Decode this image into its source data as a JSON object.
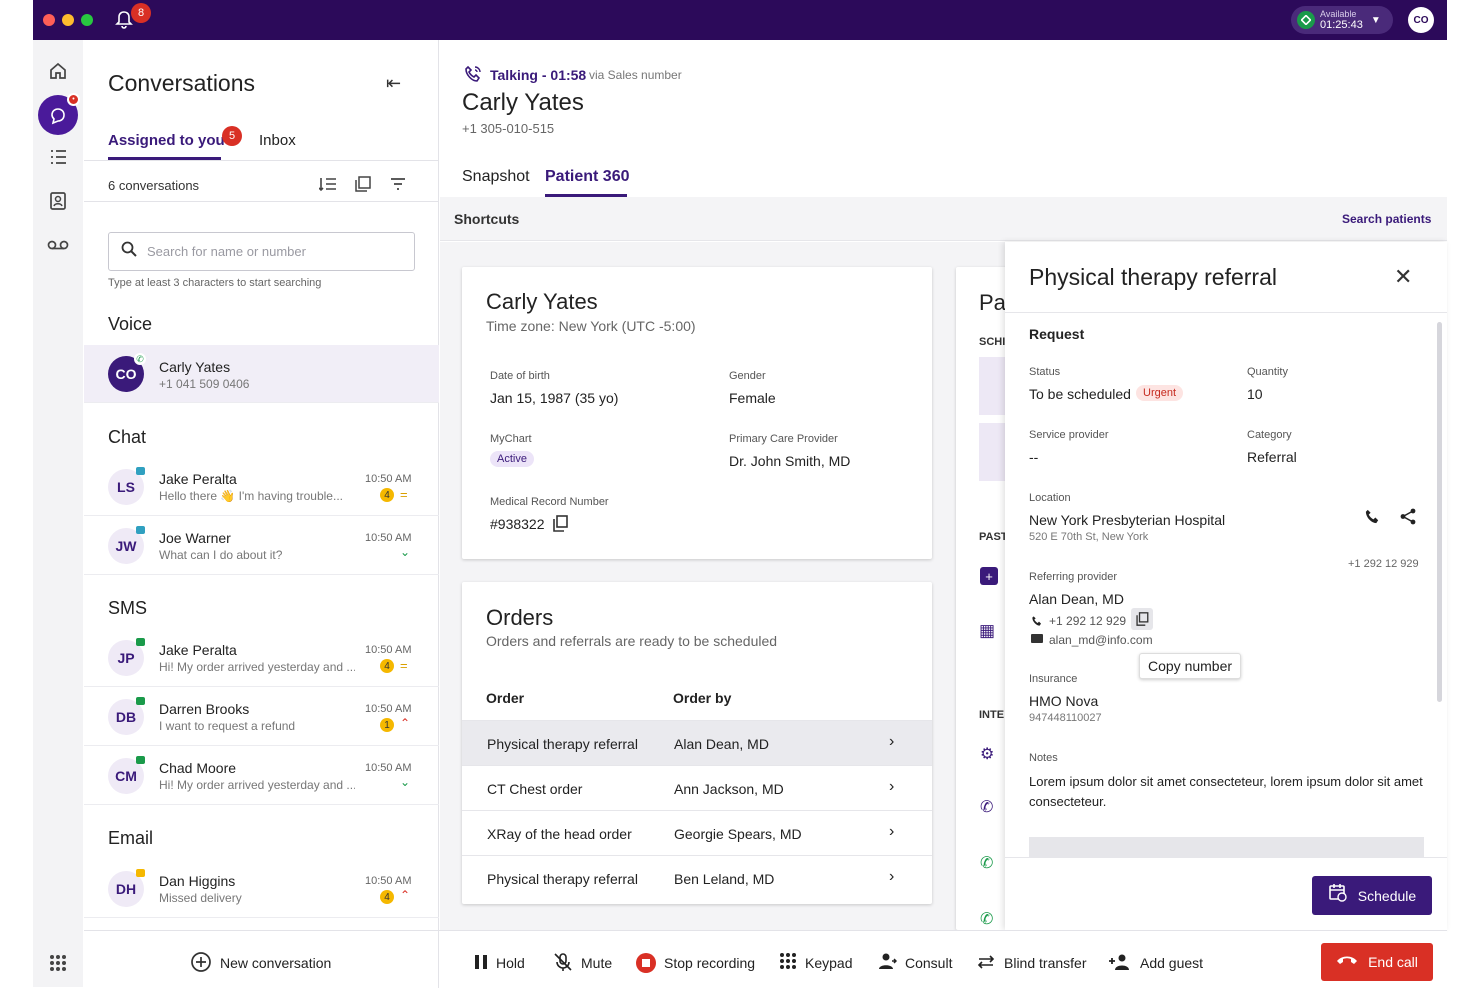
{
  "topbar": {
    "notif_count": "8",
    "status_label": "Available",
    "status_time": "01:25:43",
    "user_initials": "CO"
  },
  "rail": {
    "icons": [
      "home-icon",
      "conversations-icon",
      "queue-list-icon",
      "contacts-icon",
      "voicemail-icon",
      "apps-grid-icon"
    ],
    "conv_badge": "•"
  },
  "conversations": {
    "title": "Conversations",
    "tabs": [
      {
        "label": "Assigned to you",
        "badge": "5"
      },
      {
        "label": "Inbox"
      }
    ],
    "count_label": "6 conversations",
    "search_placeholder": "Search for name or number",
    "search_hint": "Type at least 3 characters to start searching",
    "sections": {
      "voice": "Voice",
      "chat": "Chat",
      "sms": "SMS",
      "email": "Email"
    },
    "voice_items": [
      {
        "initials": "CO",
        "name": "Carly Yates",
        "preview": "+1 041 509 0406"
      }
    ],
    "chat_items": [
      {
        "initials": "LS",
        "name": "Jake Peralta",
        "preview": "Hello there 👋 I'm having trouble...",
        "time": "10:50 AM",
        "count": "4",
        "indicator": "="
      },
      {
        "initials": "JW",
        "name": "Joe Warner",
        "preview": "What can I do about it?",
        "time": "10:50 AM",
        "indicator": "⌄"
      }
    ],
    "sms_items": [
      {
        "initials": "JP",
        "name": "Jake Peralta",
        "preview": "Hi! My order arrived yesterday and ...",
        "time": "10:50 AM",
        "count": "4",
        "indicator": "="
      },
      {
        "initials": "DB",
        "name": "Darren Brooks",
        "preview": "I want to request a refund",
        "time": "10:50 AM",
        "count": "1",
        "indicator": "⌃"
      },
      {
        "initials": "CM",
        "name": "Chad Moore",
        "preview": "Hi! My order arrived yesterday and ...",
        "time": "10:50 AM",
        "indicator": "⌄"
      }
    ],
    "email_items": [
      {
        "initials": "DH",
        "name": "Dan Higgins",
        "preview": "Missed delivery",
        "time": "10:50 AM",
        "count": "4",
        "indicator": "⌃"
      }
    ],
    "new_conversation": "New conversation"
  },
  "call": {
    "status": "Talking - 01:58",
    "via": "via Sales number",
    "name": "Carly Yates",
    "phone": "+1 305-010-515",
    "tabs": [
      "Snapshot",
      "Patient 360"
    ],
    "active_tab": "Patient 360"
  },
  "shortcuts": {
    "title": "Shortcuts",
    "search_patients": "Search patients"
  },
  "patient_card": {
    "name": "Carly Yates",
    "timezone": "Time zone: New York (UTC -5:00)",
    "dob_label": "Date of birth",
    "dob": "Jan 15, 1987 (35 yo)",
    "gender_label": "Gender",
    "gender": "Female",
    "mychart_label": "MyChart",
    "mychart": "Active",
    "pcp_label": "Primary Care  Provider",
    "pcp": "Dr. John Smith, MD",
    "mrn_label": "Medical Record Number",
    "mrn": "#938322"
  },
  "orders": {
    "title": "Orders",
    "subtitle": "Orders and referrals are ready to be scheduled",
    "col_order": "Order",
    "col_by": "Order by",
    "rows": [
      {
        "order": "Physical therapy referral",
        "by": "Alan Dean, MD"
      },
      {
        "order": "CT Chest order",
        "by": "Ann Jackson, MD"
      },
      {
        "order": "XRay of the head order",
        "by": "Georgie Spears, MD"
      },
      {
        "order": "Physical therapy referral",
        "by": "Ben Leland, MD"
      }
    ]
  },
  "side_card": {
    "title_partial": "Pa",
    "labels": [
      "SCHI",
      "PAST",
      "INTE"
    ]
  },
  "drawer": {
    "title": "Physical therapy referral",
    "section": "Request",
    "status_label": "Status",
    "status": "To be scheduled",
    "urgent": "Urgent",
    "quantity_label": "Quantity",
    "quantity": "10",
    "service_label": "Service provider",
    "service": "--",
    "category_label": "Category",
    "category": "Referral",
    "location_label": "Location",
    "location": "New York Presbyterian Hospital",
    "address": "520 E 70th St, New York",
    "location_phone": "+1 292 12 929",
    "ref_label": "Referring provider",
    "ref_name": "Alan Dean, MD",
    "ref_phone": "+1 292 12 929",
    "ref_email": "alan_md@info.com",
    "tooltip": "Copy number",
    "insurance_label": "Insurance",
    "insurance": "HMO Nova",
    "insurance_id": "947448110027",
    "notes_label": "Notes",
    "notes": "Lorem ipsum dolor sit amet consecteteur, lorem ipsum dolor sit amet consecteteur.",
    "schedule": "Schedule"
  },
  "controls": {
    "hold": "Hold",
    "mute": "Mute",
    "stop_recording": "Stop recording",
    "keypad": "Keypad",
    "consult": "Consult",
    "blind_transfer": "Blind transfer",
    "add_guest": "Add guest",
    "end_call": "End call"
  },
  "colors": {
    "brand": "#2c0a5a",
    "accent": "#4a1a9a",
    "danger": "#d93025",
    "badge": "#d93025",
    "gold": "#f5b800"
  }
}
